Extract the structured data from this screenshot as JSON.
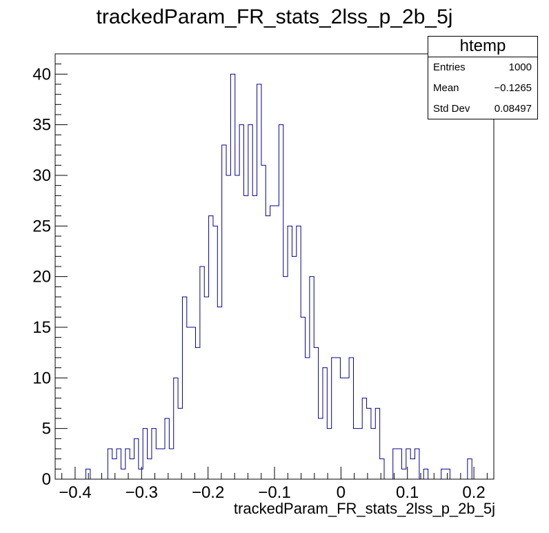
{
  "title": "trackedParam_FR_stats_2lss_p_2b_5j",
  "stats": {
    "name": "htemp",
    "entries_label": "Entries",
    "entries": "1000",
    "mean_label": "Mean",
    "mean": "−0.1265",
    "std_label": "Std Dev",
    "std": "0.08497"
  },
  "chart_data": {
    "type": "bar",
    "title": "trackedParam_FR_stats_2lss_p_2b_5j",
    "xlabel": "trackedParam_FR_stats_2lss_p_2b_5j",
    "ylabel": "",
    "xlim": [
      -0.43,
      0.23
    ],
    "ylim": [
      0,
      42
    ],
    "xticks": [
      "−0.4",
      "−0.3",
      "−0.2",
      "−0.1",
      "0",
      "0.1",
      "0.2"
    ],
    "yticks": [
      "0",
      "5",
      "10",
      "15",
      "20",
      "25",
      "30",
      "35",
      "40"
    ],
    "line_color": "#000099",
    "bins": {
      "low": -0.43,
      "high": 0.23,
      "count": 100
    },
    "values": [
      0,
      0,
      0,
      0,
      0,
      0,
      0,
      1,
      0,
      0,
      0,
      0,
      3,
      2,
      3,
      1,
      3,
      2,
      4,
      1,
      5,
      2,
      5,
      3,
      3,
      6,
      3,
      10,
      7,
      18,
      15,
      15,
      13,
      21,
      18,
      26,
      25,
      17,
      33,
      30,
      40,
      30,
      35,
      28,
      35,
      28,
      39,
      31,
      26,
      27,
      27,
      35,
      20,
      25,
      22,
      25,
      16,
      12,
      20,
      13,
      6,
      11,
      5,
      12,
      12,
      10,
      10,
      12,
      5,
      5,
      8,
      7,
      5,
      7,
      2,
      0,
      0,
      3,
      3,
      1,
      3,
      2,
      3,
      0,
      1,
      0,
      0,
      0,
      1,
      1,
      0,
      0,
      0,
      0,
      2,
      0,
      0,
      0,
      0,
      0
    ]
  }
}
